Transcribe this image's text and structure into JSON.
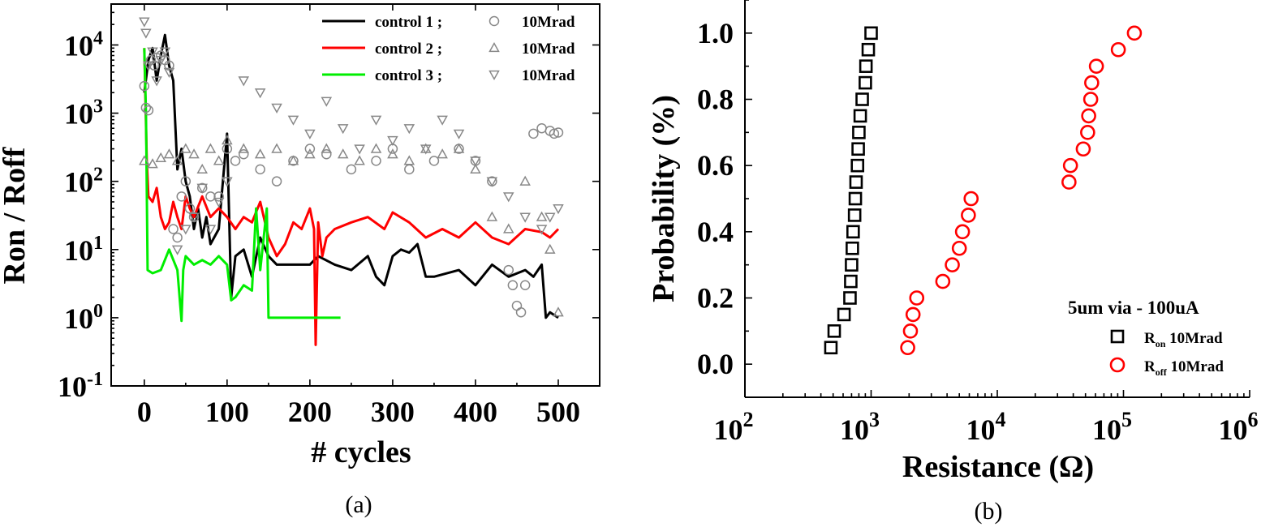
{
  "panel_labels": {
    "a": "(a)",
    "b": "(b)"
  },
  "colors": {
    "control1": "#000000",
    "control2": "#ff0000",
    "control3": "#00ee00",
    "irradiated": "#888888",
    "ron_marker": "#000000",
    "roff_marker": "#ff0000"
  },
  "chart_data": [
    {
      "type": "line",
      "panel": "a",
      "title": "",
      "xlabel": "# cycles",
      "ylabel": "Ron / Roff",
      "xlim": [
        -40,
        550
      ],
      "ylim_log10": [
        -1,
        4.6
      ],
      "xticks": [
        0,
        100,
        200,
        300,
        400,
        500
      ],
      "xtick_labels": [
        "0",
        "100",
        "200",
        "300",
        "400",
        "500"
      ],
      "yticks_log10": [
        -1,
        0,
        1,
        2,
        3,
        4
      ],
      "ytick_bases": [
        "10",
        "10",
        "10",
        "10",
        "10",
        "10"
      ],
      "ytick_exponents": [
        "-1",
        "0",
        "1",
        "2",
        "3",
        "4"
      ],
      "legend": {
        "rows": [
          {
            "line_label": "control 1 ;",
            "marker_label": "10Mrad",
            "line_color": "control1",
            "marker": "circle"
          },
          {
            "line_label": "control 2 ;",
            "marker_label": "10Mrad",
            "line_color": "control2",
            "marker": "triangle-up"
          },
          {
            "line_label": "control 3 ;",
            "marker_label": "10Mrad",
            "line_color": "control3",
            "marker": "triangle-down"
          }
        ],
        "placement": "top-right"
      },
      "series": [
        {
          "name": "control 1",
          "kind": "line",
          "color": "control1",
          "x": [
            0,
            5,
            10,
            15,
            20,
            25,
            30,
            35,
            40,
            45,
            50,
            55,
            60,
            65,
            70,
            75,
            80,
            90,
            100,
            105,
            110,
            120,
            130,
            140,
            150,
            160,
            180,
            200,
            210,
            230,
            250,
            270,
            280,
            290,
            300,
            310,
            320,
            330,
            340,
            350,
            380,
            400,
            420,
            440,
            460,
            470,
            480,
            485,
            490,
            500
          ],
          "y": [
            2000,
            6000,
            9000,
            3000,
            7000,
            14000,
            5000,
            3000,
            150,
            300,
            100,
            60,
            20,
            40,
            15,
            30,
            12,
            20,
            500,
            2,
            8,
            10,
            4,
            15,
            8,
            6,
            6,
            6,
            8,
            6,
            5,
            8,
            4,
            3,
            8,
            10,
            9,
            12,
            4,
            4,
            5,
            3,
            6,
            4,
            5,
            4,
            6,
            1,
            1.2,
            1
          ]
        },
        {
          "name": "control 2",
          "kind": "line",
          "color": "control2",
          "x": [
            0,
            3,
            5,
            10,
            15,
            20,
            25,
            30,
            35,
            40,
            45,
            50,
            55,
            60,
            70,
            80,
            90,
            100,
            110,
            120,
            130,
            140,
            150,
            160,
            170,
            180,
            190,
            200,
            205,
            207,
            210,
            215,
            220,
            230,
            250,
            270,
            290,
            300,
            320,
            340,
            360,
            380,
            400,
            420,
            440,
            460,
            480,
            490,
            500
          ],
          "y": [
            9000,
            200,
            60,
            50,
            80,
            30,
            20,
            25,
            50,
            30,
            20,
            60,
            40,
            30,
            60,
            30,
            40,
            30,
            20,
            30,
            25,
            50,
            15,
            8,
            12,
            25,
            20,
            40,
            20,
            0.4,
            25,
            8,
            15,
            20,
            25,
            30,
            20,
            35,
            25,
            15,
            20,
            15,
            25,
            15,
            12,
            20,
            18,
            15,
            20
          ]
        },
        {
          "name": "control 3",
          "kind": "line",
          "color": "control3",
          "x": [
            0,
            2,
            4,
            10,
            20,
            30,
            40,
            45,
            47,
            50,
            60,
            70,
            80,
            90,
            100,
            105,
            110,
            120,
            130,
            135,
            140,
            148,
            150,
            160,
            200,
            237
          ],
          "y": [
            9000,
            1000,
            5,
            4.5,
            5,
            10,
            5,
            0.9,
            5,
            8,
            6,
            7,
            6,
            8,
            6,
            1.8,
            2,
            3,
            2.5,
            40,
            5,
            40,
            1,
            1,
            1,
            1
          ]
        },
        {
          "name": "10Mrad",
          "kind": "scatter",
          "marker": "circle",
          "color": "irradiated",
          "x": [
            0,
            2,
            5,
            8,
            12,
            15,
            20,
            25,
            30,
            35,
            40,
            45,
            50,
            55,
            60,
            70,
            80,
            90,
            100,
            110,
            120,
            140,
            160,
            180,
            200,
            220,
            250,
            280,
            300,
            320,
            350,
            380,
            400,
            420,
            440,
            445,
            450,
            455,
            460,
            470,
            480,
            490,
            495,
            500
          ],
          "y": [
            2500,
            1200,
            1100,
            6000,
            5000,
            6500,
            7000,
            6000,
            5000,
            20,
            15,
            60,
            100,
            40,
            30,
            80,
            60,
            60,
            300,
            200,
            250,
            150,
            100,
            200,
            300,
            250,
            150,
            200,
            300,
            150,
            200,
            300,
            200,
            100,
            5,
            3,
            1.5,
            1.2,
            3,
            500,
            600,
            550,
            500,
            520
          ]
        },
        {
          "name": "10Mrad",
          "kind": "scatter",
          "marker": "triangle-up",
          "color": "irradiated",
          "x": [
            0,
            10,
            20,
            30,
            40,
            50,
            60,
            70,
            80,
            90,
            100,
            120,
            140,
            160,
            180,
            200,
            220,
            240,
            260,
            280,
            300,
            320,
            340,
            360,
            380,
            400,
            420,
            440,
            460,
            480,
            490,
            500
          ],
          "y": [
            200,
            180,
            220,
            250,
            200,
            300,
            250,
            150,
            300,
            200,
            400,
            300,
            250,
            300,
            200,
            250,
            300,
            250,
            200,
            300,
            250,
            200,
            300,
            250,
            300,
            150,
            30,
            20,
            100,
            30,
            10,
            1.2
          ]
        },
        {
          "name": "10Mrad",
          "kind": "scatter",
          "marker": "triangle-down",
          "color": "irradiated",
          "x": [
            0,
            2,
            5,
            10,
            15,
            20,
            25,
            30,
            40,
            50,
            60,
            70,
            80,
            90,
            100,
            120,
            140,
            160,
            180,
            200,
            220,
            240,
            260,
            280,
            300,
            320,
            340,
            360,
            380,
            400,
            420,
            440,
            460,
            480,
            490,
            500
          ],
          "y": [
            22000,
            15000,
            5000,
            8000,
            3000,
            6000,
            8000,
            4000,
            10,
            20,
            30,
            80,
            20,
            50,
            100,
            3000,
            2000,
            1200,
            800,
            500,
            1500,
            600,
            300,
            800,
            400,
            600,
            300,
            800,
            500,
            200,
            100,
            60,
            30,
            20,
            30,
            40
          ]
        }
      ]
    },
    {
      "type": "scatter",
      "panel": "b",
      "title": "",
      "xlabel": "Resistance (Ω)",
      "ylabel": "Probability (%)",
      "xlim_log10": [
        2,
        6
      ],
      "ylim": [
        -0.1,
        1.1
      ],
      "xticks_log10": [
        2,
        3,
        4,
        5,
        6
      ],
      "xtick_bases": [
        "10",
        "10",
        "10",
        "10",
        "10"
      ],
      "xtick_exponents": [
        "2",
        "3",
        "4",
        "5",
        "6"
      ],
      "yticks": [
        0.0,
        0.2,
        0.4,
        0.6,
        0.8,
        1.0
      ],
      "ytick_labels": [
        "0.0",
        "0.2",
        "0.4",
        "0.6",
        "0.8",
        "1.0"
      ],
      "legend": {
        "title": "5um via - 100uA",
        "placement": "bottom-right",
        "entries": [
          {
            "base": "R",
            "sub": "on",
            "suffix": " 10Mrad",
            "marker": "square",
            "color": "ron_marker"
          },
          {
            "base": "R",
            "sub": "off",
            "suffix": " 10Mrad",
            "marker": "circle",
            "color": "roff_marker"
          }
        ]
      },
      "series": [
        {
          "name": "Ron 10Mrad",
          "marker": "square",
          "color": "ron_marker",
          "x": [
            480,
            510,
            610,
            680,
            690,
            700,
            710,
            720,
            740,
            750,
            760,
            780,
            790,
            800,
            820,
            850,
            900,
            910,
            950,
            1000
          ],
          "y": [
            0.05,
            0.1,
            0.15,
            0.2,
            0.25,
            0.3,
            0.35,
            0.4,
            0.45,
            0.5,
            0.55,
            0.6,
            0.65,
            0.7,
            0.75,
            0.8,
            0.85,
            0.9,
            0.95,
            1.0
          ]
        },
        {
          "name": "Roff 10Mrad",
          "marker": "circle",
          "color": "roff_marker",
          "x": [
            1950,
            2050,
            2150,
            2300,
            3700,
            4400,
            5000,
            5300,
            5900,
            6200,
            37000,
            38000,
            48000,
            52000,
            53000,
            55000,
            56000,
            61000,
            91000,
            122000
          ],
          "y": [
            0.05,
            0.1,
            0.15,
            0.2,
            0.25,
            0.3,
            0.35,
            0.4,
            0.45,
            0.5,
            0.55,
            0.6,
            0.65,
            0.7,
            0.75,
            0.8,
            0.85,
            0.9,
            0.95,
            1.0
          ]
        }
      ]
    }
  ]
}
